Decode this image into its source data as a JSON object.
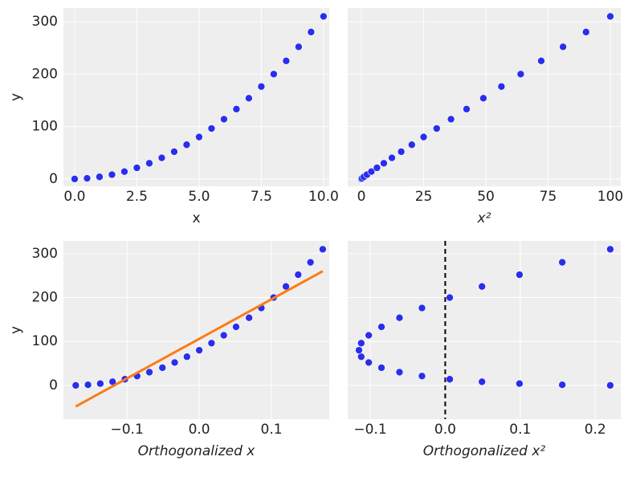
{
  "chart_data": [
    {
      "type": "scatter",
      "xlabel": "x",
      "ylabel": "y",
      "x": [
        0,
        0.5,
        1,
        1.5,
        2,
        2.5,
        3,
        3.5,
        4,
        4.5,
        5,
        5.5,
        6,
        6.5,
        7,
        7.5,
        8,
        8.5,
        9,
        9.5,
        10
      ],
      "series": [
        {
          "color": "#2a2eec",
          "values": [
            0,
            1.25,
            4,
            8.25,
            14,
            21.25,
            30,
            40.25,
            52,
            65.25,
            80,
            96.25,
            114,
            133.25,
            154,
            176.25,
            200,
            225.25,
            252,
            280.25,
            310
          ]
        }
      ],
      "xlim": [
        -0.45,
        10.23
      ],
      "ylim": [
        -14,
        326
      ],
      "xticks": [
        {
          "value": 0,
          "label": "0.0"
        },
        2.5,
        {
          "value": 5,
          "label": "5.0"
        },
        7.5,
        {
          "value": 10,
          "label": "10.0"
        }
      ],
      "yticks": [
        0,
        100,
        200,
        300
      ],
      "ytick_labels": true,
      "grid": true
    },
    {
      "type": "scatter",
      "xlabel": "x²",
      "x": [
        0,
        0.25,
        1,
        2.25,
        4,
        6.25,
        9,
        12.25,
        16,
        20.25,
        25,
        30.25,
        36,
        42.25,
        49,
        56.25,
        64,
        72.25,
        81,
        90.25,
        100
      ],
      "series": [
        {
          "color": "#2a2eec",
          "values": [
            0,
            1.25,
            4,
            8.25,
            14,
            21.25,
            30,
            40.25,
            52,
            65.25,
            80,
            96.25,
            114,
            133.25,
            154,
            176.25,
            200,
            225.25,
            252,
            280.25,
            310
          ]
        }
      ],
      "xlim": [
        -5.5,
        104.2
      ],
      "ylim": [
        -14,
        326
      ],
      "xticks": [
        0,
        25,
        50,
        75,
        100
      ],
      "yticks": [
        0,
        100,
        200,
        300
      ],
      "ytick_labels": false,
      "grid": true
    },
    {
      "type": "scatter",
      "xlabel": "Orthogonalized x",
      "ylabel": "y",
      "x": [
        -0.171,
        -0.154,
        -0.137,
        -0.12,
        -0.103,
        -0.086,
        -0.069,
        -0.051,
        -0.034,
        -0.017,
        0,
        0.017,
        0.034,
        0.051,
        0.069,
        0.086,
        0.103,
        0.12,
        0.137,
        0.154,
        0.171
      ],
      "series": [
        {
          "color": "#2a2eec",
          "values": [
            0,
            1.25,
            4,
            8.25,
            14,
            21.25,
            30,
            40.25,
            52,
            65.25,
            80,
            96.25,
            114,
            133.25,
            154,
            176.25,
            200,
            225.25,
            252,
            280.25,
            310
          ]
        }
      ],
      "fit": {
        "color": "#fa7c17",
        "x": [
          -0.171,
          0.171
        ],
        "values": [
          -48,
          260
        ]
      },
      "xlim": [
        -0.188,
        0.18
      ],
      "ylim": [
        -77,
        329
      ],
      "xticks": [
        {
          "value": -0.1,
          "label": "−0.1"
        },
        {
          "value": 0,
          "label": "0.0"
        },
        0.1
      ],
      "yticks": [
        0,
        100,
        200,
        300
      ],
      "ytick_labels": true,
      "grid": true
    },
    {
      "type": "scatter",
      "xlabel": "Orthogonalized x²",
      "x": [
        0.22,
        0.156,
        0.099,
        0.049,
        0.006,
        -0.031,
        -0.061,
        -0.085,
        -0.102,
        -0.112,
        -0.115,
        -0.112,
        -0.102,
        -0.085,
        -0.061,
        -0.031,
        0.006,
        0.049,
        0.099,
        0.156,
        0.22
      ],
      "series": [
        {
          "color": "#2a2eec",
          "values": [
            0,
            1.25,
            4,
            8.25,
            14,
            21.25,
            30,
            40.25,
            52,
            65.25,
            80,
            96.25,
            114,
            133.25,
            154,
            176.25,
            200,
            225.25,
            252,
            280.25,
            310
          ]
        }
      ],
      "vline": {
        "value": 0,
        "color": "#000000",
        "dashed": true
      },
      "xlim": [
        -0.13,
        0.234
      ],
      "ylim": [
        -77,
        329
      ],
      "xticks": [
        {
          "value": -0.1,
          "label": "−0.1"
        },
        {
          "value": 0,
          "label": "0.0"
        },
        0.1,
        0.2
      ],
      "yticks": [
        0,
        100,
        200,
        300
      ],
      "ytick_labels": false,
      "grid": true
    }
  ]
}
